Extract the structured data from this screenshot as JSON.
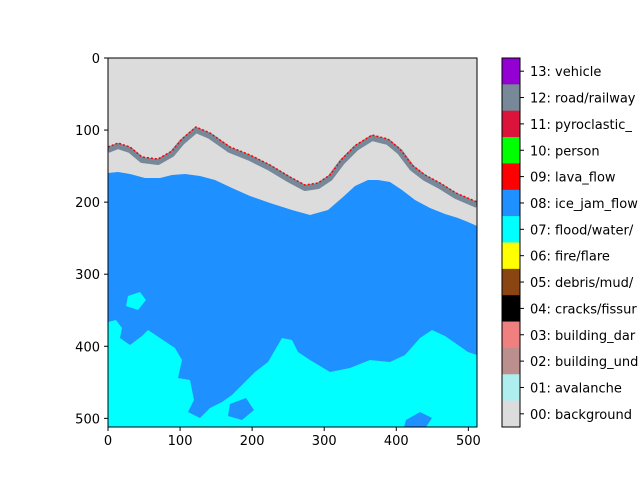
{
  "chart_data": {
    "type": "heatmap",
    "title": "",
    "xlabel": "",
    "ylabel": "",
    "xlim": [
      0,
      512
    ],
    "ylim": [
      512,
      0
    ],
    "x_ticks": [
      0,
      100,
      200,
      300,
      400,
      500
    ],
    "y_ticks": [
      0,
      100,
      200,
      300,
      400,
      500
    ],
    "legend_position": "right",
    "classes": [
      {
        "label": "13: vehicle",
        "color": "#9400d3"
      },
      {
        "label": "12: road/railway",
        "color": "#778899"
      },
      {
        "label": "11: pyroclastic_",
        "color": "#dc143c"
      },
      {
        "label": "10: person",
        "color": "#00ff00"
      },
      {
        "label": "09: lava_flow",
        "color": "#ff0000"
      },
      {
        "label": "08: ice_jam_flow",
        "color": "#1e90ff"
      },
      {
        "label": "07: flood/water/",
        "color": "#00ffff"
      },
      {
        "label": "06: fire/flare",
        "color": "#ffff00"
      },
      {
        "label": "05: debris/mud/",
        "color": "#8b4513"
      },
      {
        "label": "04: cracks/fissur",
        "color": "#000000"
      },
      {
        "label": "03: building_dar",
        "color": "#f08080"
      },
      {
        "label": "02: building_und",
        "color": "#bc8f8f"
      },
      {
        "label": "01: avalanche",
        "color": "#afeeee"
      },
      {
        "label": "00: background",
        "color": "#dcdcdc"
      }
    ],
    "regions": {
      "background_color": "#dcdcdc",
      "road_color": "#778899",
      "ice_color": "#1e90ff",
      "water_color": "#00ffff"
    }
  }
}
